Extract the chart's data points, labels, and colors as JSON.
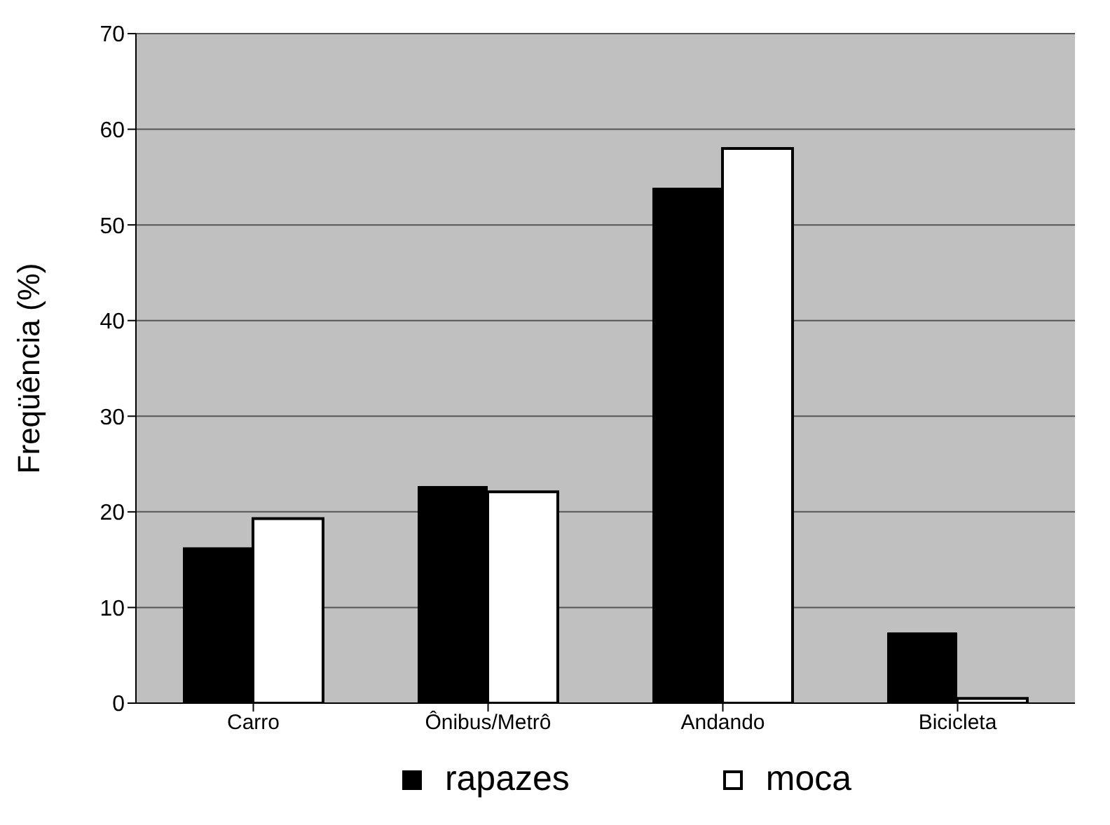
{
  "chart_data": {
    "type": "bar",
    "ylabel": "Freqüência (%)",
    "categories": [
      "Carro",
      "Ônibus/Metrô",
      "Andando",
      "Bicicleta"
    ],
    "series": [
      {
        "name": "rapazes",
        "color": "#000000",
        "values": [
          16.3,
          22.7,
          53.9,
          7.4
        ]
      },
      {
        "name": "moca",
        "color": "#ffffff",
        "values": [
          19.3,
          22.1,
          58.0,
          0.5
        ]
      }
    ],
    "ylim": [
      0,
      70
    ],
    "yticks": [
      0,
      10,
      20,
      30,
      40,
      50,
      60,
      70
    ],
    "grid": "y",
    "legend": "bottom"
  }
}
